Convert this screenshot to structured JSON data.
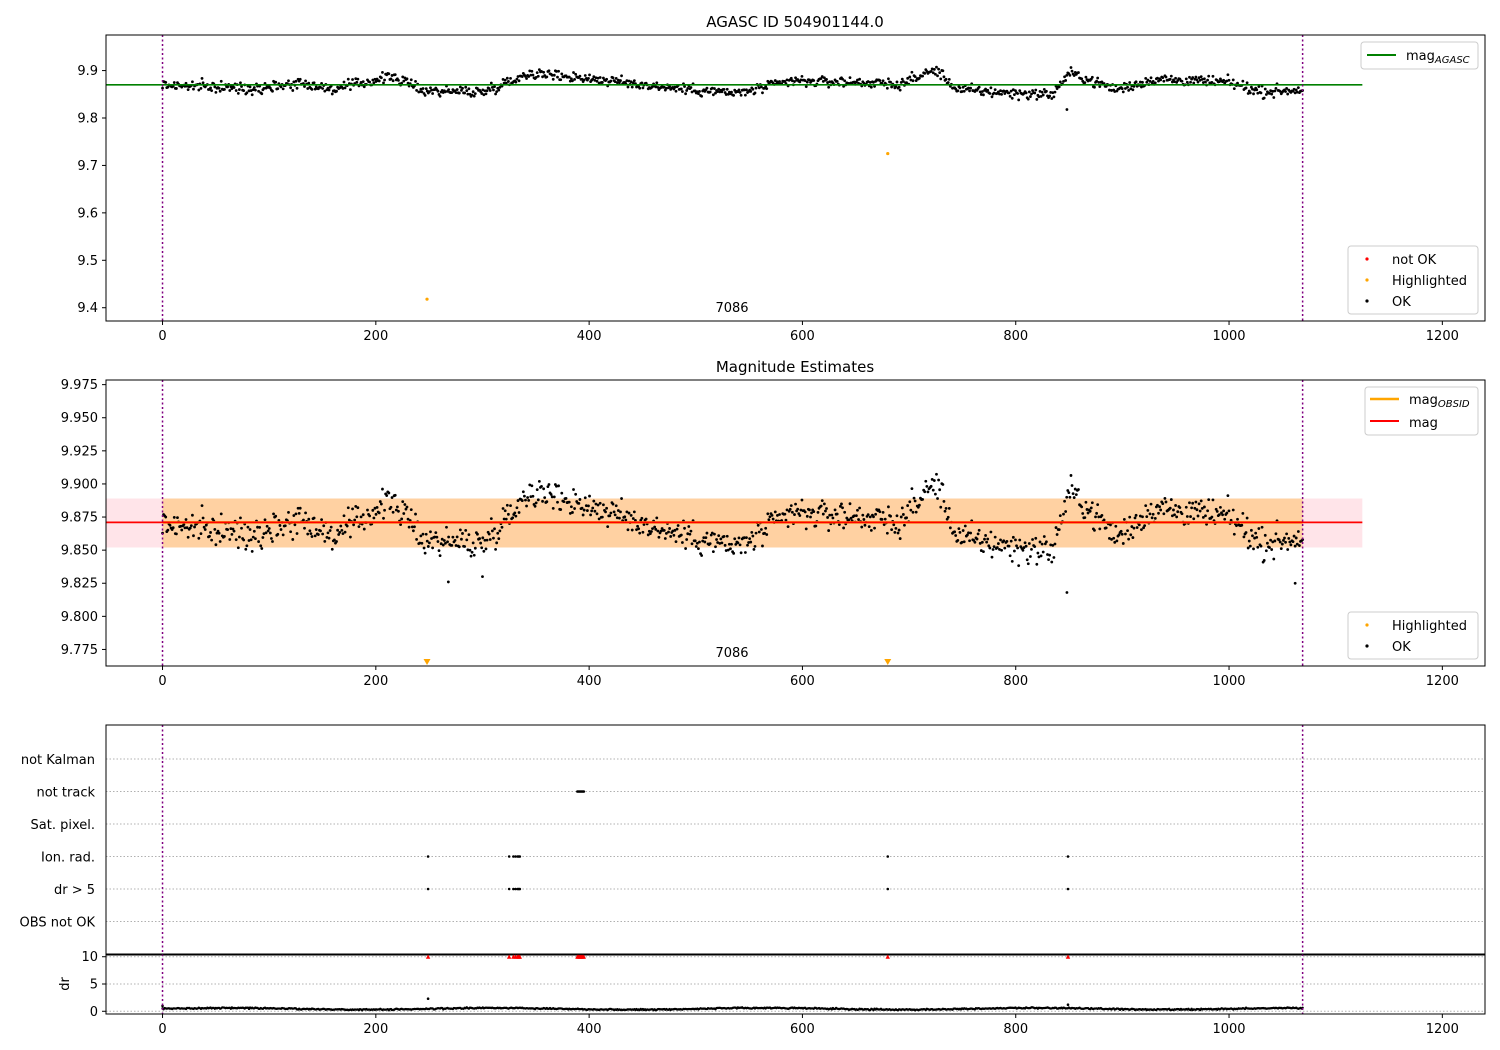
{
  "chart_data": [
    {
      "type": "scatter",
      "title": "AGASC ID 504901144.0",
      "xlabel": "",
      "ylabel": "",
      "xlim": [
        -53,
        1240
      ],
      "ylim": [
        9.372,
        9.975
      ],
      "xticks": [
        0,
        200,
        400,
        600,
        800,
        1000,
        1200
      ],
      "yticks": [
        9.4,
        9.5,
        9.6,
        9.7,
        9.8,
        9.9
      ],
      "ytick_labels": [
        "9.4",
        "9.5",
        "9.6",
        "9.7",
        "9.8",
        "9.9"
      ],
      "grid": false,
      "obsid_boundaries": [
        0,
        1069
      ],
      "obsid_labels": [
        {
          "x": 534,
          "text": "7086"
        }
      ],
      "lines": [
        {
          "name": "mag_AGASC",
          "label_main": "mag",
          "label_sub": "AGASC",
          "y": 9.87,
          "x_range": [
            -53,
            1125
          ],
          "color": "#008000"
        }
      ],
      "legend_lines": [
        {
          "label_main": "mag",
          "label_sub": "AGASC",
          "color": "#008000"
        }
      ],
      "legend_points": [
        {
          "label": "not OK",
          "color": "#ff0000"
        },
        {
          "label": "Highlighted",
          "color": "#ffa500"
        },
        {
          "label": "OK",
          "color": "#000000"
        }
      ],
      "legend_lines_position": "top-right",
      "legend_points_position": "bottom-right",
      "highlighted_points": [
        {
          "x": 248,
          "y": 9.418
        },
        {
          "x": 680,
          "y": 9.725
        }
      ],
      "ok_series": {
        "name": "OK",
        "x_range": [
          0,
          1069
        ],
        "n": 1069,
        "mean": 9.87,
        "segment_levels": [
          [
            0,
            9.87
          ],
          [
            80,
            9.862
          ],
          [
            130,
            9.874
          ],
          [
            160,
            9.86
          ],
          [
            215,
            9.888
          ],
          [
            245,
            9.858
          ],
          [
            300,
            9.855
          ],
          [
            345,
            9.895
          ],
          [
            395,
            9.885
          ],
          [
            470,
            9.865
          ],
          [
            540,
            9.852
          ],
          [
            590,
            9.878
          ],
          [
            660,
            9.875
          ],
          [
            690,
            9.87
          ],
          [
            725,
            9.902
          ],
          [
            745,
            9.86
          ],
          [
            800,
            9.852
          ],
          [
            835,
            9.85
          ],
          [
            850,
            9.895
          ],
          [
            895,
            9.86
          ],
          [
            930,
            9.882
          ],
          [
            1000,
            9.875
          ],
          [
            1030,
            9.855
          ],
          [
            1069,
            9.86
          ]
        ],
        "noise": 0.011,
        "outliers": [
          {
            "x": 848,
            "y": 9.818
          }
        ]
      }
    },
    {
      "type": "scatter",
      "title": "Magnitude Estimates",
      "xlabel": "",
      "ylabel": "",
      "xlim": [
        -53,
        1240
      ],
      "ylim": [
        9.7625,
        9.9785
      ],
      "xticks": [
        0,
        200,
        400,
        600,
        800,
        1000,
        1200
      ],
      "yticks": [
        9.775,
        9.8,
        9.825,
        9.85,
        9.875,
        9.9,
        9.925,
        9.95,
        9.975
      ],
      "ytick_labels": [
        "9.775",
        "9.800",
        "9.825",
        "9.850",
        "9.875",
        "9.900",
        "9.925",
        "9.950",
        "9.975"
      ],
      "grid": false,
      "obsid_boundaries": [
        0,
        1069
      ],
      "obsid_labels": [
        {
          "x": 534,
          "text": "7086"
        }
      ],
      "bands": [
        {
          "name": "mag_OBSID band",
          "y_low": 9.852,
          "y_high": 9.889,
          "x_range": [
            0,
            1069
          ],
          "color": "#ffa500",
          "opacity": 0.3
        },
        {
          "name": "mag band",
          "y_low": 9.852,
          "y_high": 9.889,
          "x_range": [
            -53,
            1125
          ],
          "color": "#ff4d6a",
          "opacity": 0.15
        }
      ],
      "lines": [
        {
          "name": "mag_OBSID",
          "label_main": "mag",
          "label_sub": "OBSID",
          "y": 9.871,
          "x_range": [
            0,
            1069
          ],
          "color": "#ffa500"
        },
        {
          "name": "mag",
          "label_main": "mag",
          "label_sub": "",
          "y": 9.871,
          "x_range": [
            -53,
            1125
          ],
          "color": "#ff0000"
        }
      ],
      "legend_lines": [
        {
          "label_main": "mag",
          "label_sub": "OBSID",
          "color": "#ffa500"
        },
        {
          "label_main": "mag",
          "label_sub": "",
          "color": "#ff0000"
        }
      ],
      "legend_points": [
        {
          "label": "Highlighted",
          "color": "#ffa500"
        },
        {
          "label": "OK",
          "color": "#000000"
        }
      ],
      "legend_lines_position": "top-right",
      "legend_points_position": "bottom-right",
      "highlighted_points": [
        {
          "x": 248,
          "y": 9.7655,
          "marker": "down-triangle"
        },
        {
          "x": 680,
          "y": 9.7655,
          "marker": "down-triangle"
        }
      ],
      "ok_series": {
        "name": "OK",
        "x_range": [
          0,
          1069
        ],
        "n": 1069,
        "mean": 9.871,
        "segment_levels": [
          [
            0,
            9.87
          ],
          [
            80,
            9.862
          ],
          [
            130,
            9.874
          ],
          [
            160,
            9.86
          ],
          [
            215,
            9.888
          ],
          [
            245,
            9.858
          ],
          [
            300,
            9.855
          ],
          [
            345,
            9.895
          ],
          [
            395,
            9.885
          ],
          [
            470,
            9.865
          ],
          [
            540,
            9.852
          ],
          [
            590,
            9.878
          ],
          [
            660,
            9.875
          ],
          [
            690,
            9.87
          ],
          [
            725,
            9.902
          ],
          [
            745,
            9.86
          ],
          [
            800,
            9.852
          ],
          [
            835,
            9.85
          ],
          [
            850,
            9.895
          ],
          [
            895,
            9.86
          ],
          [
            930,
            9.882
          ],
          [
            1000,
            9.875
          ],
          [
            1030,
            9.855
          ],
          [
            1069,
            9.86
          ]
        ],
        "noise": 0.011,
        "outliers": [
          {
            "x": 848,
            "y": 9.818
          },
          {
            "x": 1062,
            "y": 9.825
          },
          {
            "x": 300,
            "y": 9.83
          },
          {
            "x": 268,
            "y": 9.826
          }
        ]
      }
    },
    {
      "type": "scatter",
      "title": "",
      "xlabel": "",
      "ylabel": "",
      "xlim": [
        -53,
        1240
      ],
      "grid": true,
      "obsid_boundaries": [
        0,
        1069
      ],
      "flag_categories": [
        "not Kalman",
        "not track",
        "Sat. pixel.",
        "Ion. rad.",
        "dr > 5",
        "OBS not OK"
      ],
      "flag_points": [
        {
          "flag": "not track",
          "x": [
            389,
            390,
            391,
            392,
            393,
            394,
            395
          ]
        },
        {
          "flag": "Ion. rad.",
          "x": [
            249,
            325,
            329,
            331,
            333,
            334,
            335,
            680,
            849
          ]
        },
        {
          "flag": "dr > 5",
          "x": [
            249,
            325,
            329,
            331,
            333,
            334,
            335,
            680,
            849
          ]
        }
      ]
    },
    {
      "type": "scatter",
      "title": "",
      "xlabel": "",
      "ylabel": "dr",
      "xlim": [
        -53,
        1240
      ],
      "ylim": [
        -0.5,
        10.5
      ],
      "xticks": [
        0,
        200,
        400,
        600,
        800,
        1000,
        1200
      ],
      "yticks": [
        0,
        5,
        10
      ],
      "ytick_labels": [
        "0",
        "5",
        "10"
      ],
      "grid": true,
      "obsid_boundaries": [
        0,
        1069
      ],
      "capped_points": {
        "y": 10,
        "x": [
          249,
          325,
          329,
          331,
          333,
          334,
          335,
          389,
          390,
          391,
          392,
          393,
          394,
          395,
          680,
          849
        ],
        "color": "#ff0000",
        "marker": "up-triangle"
      },
      "ok_series": {
        "name": "dr",
        "x_range": [
          0,
          1069
        ],
        "n": 1069,
        "mean": 0.45,
        "noise": 0.12,
        "spikes": [
          {
            "x": 0,
            "y": 1.0
          },
          {
            "x": 249,
            "y": 2.3
          },
          {
            "x": 849,
            "y": 1.2
          }
        ]
      }
    }
  ]
}
